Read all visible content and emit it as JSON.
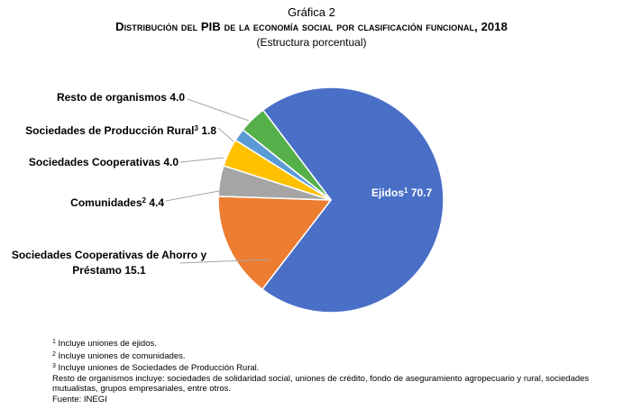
{
  "chart_data": {
    "type": "pie",
    "kicker": "Gráfica 2",
    "title": "Distribución del PIB de la economía social por clasificación funcional, 2018",
    "subtitle": "(Estructura porcentual)",
    "categories": [
      "Ejidos",
      "Sociedades Cooperativas de Ahorro y Préstamo",
      "Comunidades",
      "Sociedades Cooperativas",
      "Sociedades de Producción Rural",
      "Resto de organismos"
    ],
    "markers": [
      "1",
      null,
      "2",
      null,
      "3",
      null
    ],
    "values": [
      70.7,
      15.1,
      4.4,
      4.0,
      1.8,
      4.0
    ],
    "value_labels": [
      "70.7",
      "15.1",
      "4.4",
      "4.0",
      "1.8",
      "4.0"
    ],
    "colors": [
      "#4a6fc7",
      "#ed7d31",
      "#a5a5a5",
      "#ffc000",
      "#5b9bd5",
      "#56b04a"
    ],
    "footnotes": [
      {
        "mark": "1",
        "text": "Incluye uniones de ejidos."
      },
      {
        "mark": "2",
        "text": "Incluye uniones de comunidades."
      },
      {
        "mark": "3",
        "text": "Incluye uniones de Sociedades de Producción Rural."
      },
      {
        "mark": null,
        "text": "Resto de organismos incluye: sociedades de solidaridad social, uniones de crédito, fondo de aseguramiento agropecuario y rural, sociedades mutualistas, grupos empresariales, entre otros."
      },
      {
        "mark": null,
        "text": "Fuente: INEGI"
      }
    ]
  }
}
